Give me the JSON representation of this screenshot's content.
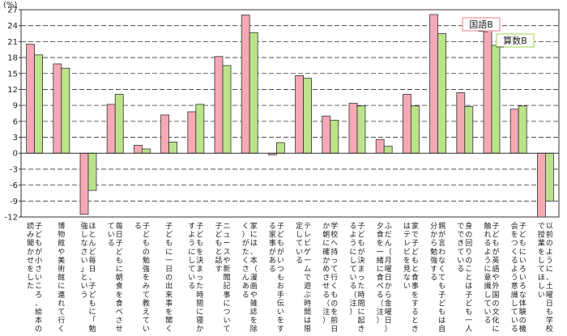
{
  "chart_data": {
    "type": "bar",
    "unit": "(%)",
    "ylim": [
      -12,
      27
    ],
    "yticks": [
      -12,
      -9,
      -6,
      -3,
      0,
      3,
      6,
      9,
      12,
      15,
      18,
      21,
      24,
      27
    ],
    "grid": true,
    "legend_placement": "top-right",
    "categories": [
      "子どもが小さいころ、絵本の読み聞かせをした",
      "博物館や美術館に連れて行く",
      "ほとんど毎日、子どもに「勉強しなさい」という",
      "毎日子どもに朝食を食べさせている",
      "子どもの勉強をみて教えている",
      "子どもに一日の出来事を聞く",
      "子どもを決まった時間に寝かすようにしている",
      "ニュースや新聞記事について子どもと話す",
      "家には、本（漫画や雑誌を除く）がたくさんある",
      "子どもがいつもお手伝いをする家事がある",
      "テレビゲームで遊ぶ時間は限定している",
      "学校へ持って行くものを前日か朝に確かめさせる（注）",
      "子どもが決まった時間に起きるようにしている（注）",
      "ふだん（月曜日から金曜日）夕食を一緒に食べる（注）",
      "家で子どもと食事をするときはテレビを見ない",
      "親が言わなくても子どもは自分から勉強する",
      "身の回りのことは子ども一人でできている",
      "子どもが英語や外国の文化に触れるように意識している",
      "子どもにいろいろな体験の機会をつくるよう意識している",
      "以前のように、土曜日も学校で授業をしてほしい"
    ],
    "series": [
      {
        "name": "国語B",
        "color": "#f4a9b4",
        "values": [
          20.5,
          16.8,
          -11.5,
          9.2,
          1.5,
          7.2,
          7.8,
          18.2,
          26.0,
          -0.3,
          14.6,
          7.0,
          9.4,
          2.6,
          11.1,
          26.1,
          11.4,
          23.1,
          8.3,
          -12.0
        ]
      },
      {
        "name": "算数B",
        "color": "#bbe38a",
        "values": [
          18.5,
          16.0,
          -7.0,
          11.1,
          0.8,
          2.1,
          9.2,
          16.5,
          22.7,
          2.0,
          14.1,
          6.2,
          8.9,
          1.3,
          8.9,
          22.5,
          8.8,
          20.3,
          8.9,
          -9.0
        ]
      }
    ]
  }
}
